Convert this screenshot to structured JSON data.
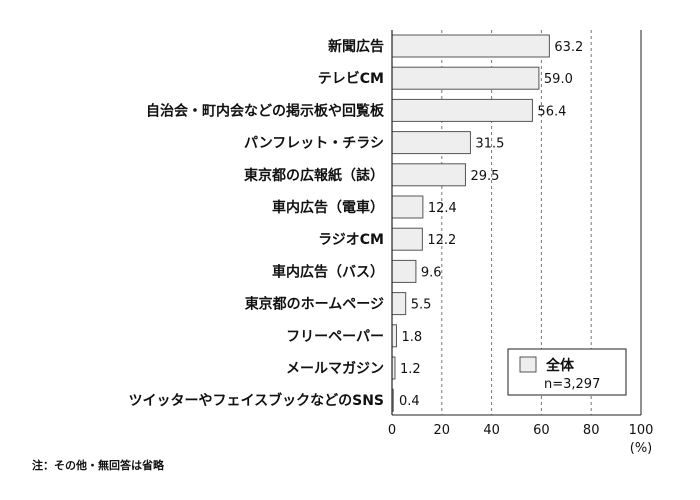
{
  "chart_data": {
    "type": "bar",
    "orientation": "horizontal",
    "categories": [
      "新聞広告",
      "テレビCM",
      "自治会・町内会などの掲示板や回覧板",
      "パンフレット・チラシ",
      "東京都の広報紙（誌）",
      "車内広告（電車）",
      "ラジオCM",
      "車内広告（バス）",
      "東京都のホームページ",
      "フリーペーパー",
      "メールマガジン",
      "ツイッターやフェイスブックなどのSNS"
    ],
    "value_labels": [
      "63.2",
      "59.0",
      "56.4",
      "31.5",
      "29.5",
      "12.4",
      "12.2",
      "9.6",
      "5.5",
      "1.8",
      "1.2",
      "0.4"
    ],
    "series": [
      {
        "name": "全体",
        "values": [
          63.2,
          59.0,
          56.4,
          31.5,
          29.5,
          12.4,
          12.2,
          9.6,
          5.5,
          1.8,
          1.2,
          0.4
        ]
      }
    ],
    "xlim": [
      0,
      100
    ],
    "xticks": [
      "0",
      "20",
      "40",
      "60",
      "80",
      "100"
    ],
    "xunit": "(%)",
    "grid": "dashed vertical lines at 20, 40, 60, 80",
    "legend": {
      "position": "bottom-right",
      "title": "全体",
      "note": "n=3,297"
    },
    "colors": {
      "bar_fill": "#eeeeee",
      "bar_stroke": "#555555",
      "grid": "#777777",
      "axis": "#222222"
    }
  },
  "footnote": "注：その他・無回答は省略"
}
